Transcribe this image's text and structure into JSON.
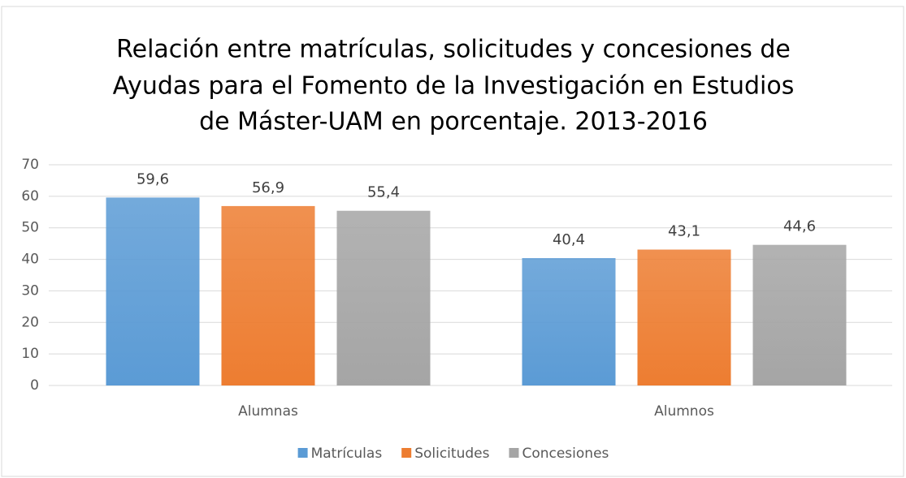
{
  "chart_data": {
    "type": "bar",
    "title": [
      "Relación entre matrículas, solicitudes y concesiones de",
      "Ayudas para el Fomento de la Investigación en Estudios",
      "de Máster-UAM en porcentaje. 2013-2016"
    ],
    "categories": [
      "Alumnas",
      "Alumnos"
    ],
    "series": [
      {
        "name": "Matrículas",
        "color": "#5b9bd5",
        "values": [
          59.6,
          40.4
        ],
        "value_labels": [
          "59,6",
          "40,4"
        ]
      },
      {
        "name": "Solicitudes",
        "color": "#ed7d31",
        "values": [
          56.9,
          43.1
        ],
        "value_labels": [
          "56,9",
          "43,1"
        ]
      },
      {
        "name": "Concesiones",
        "color": "#a5a5a5",
        "values": [
          55.4,
          44.6
        ],
        "value_labels": [
          "55,4",
          "44,6"
        ]
      }
    ],
    "ylim": [
      0,
      70
    ],
    "yticks": [
      0,
      10,
      20,
      30,
      40,
      50,
      60,
      70
    ],
    "grid": true,
    "legend": "bottom"
  }
}
